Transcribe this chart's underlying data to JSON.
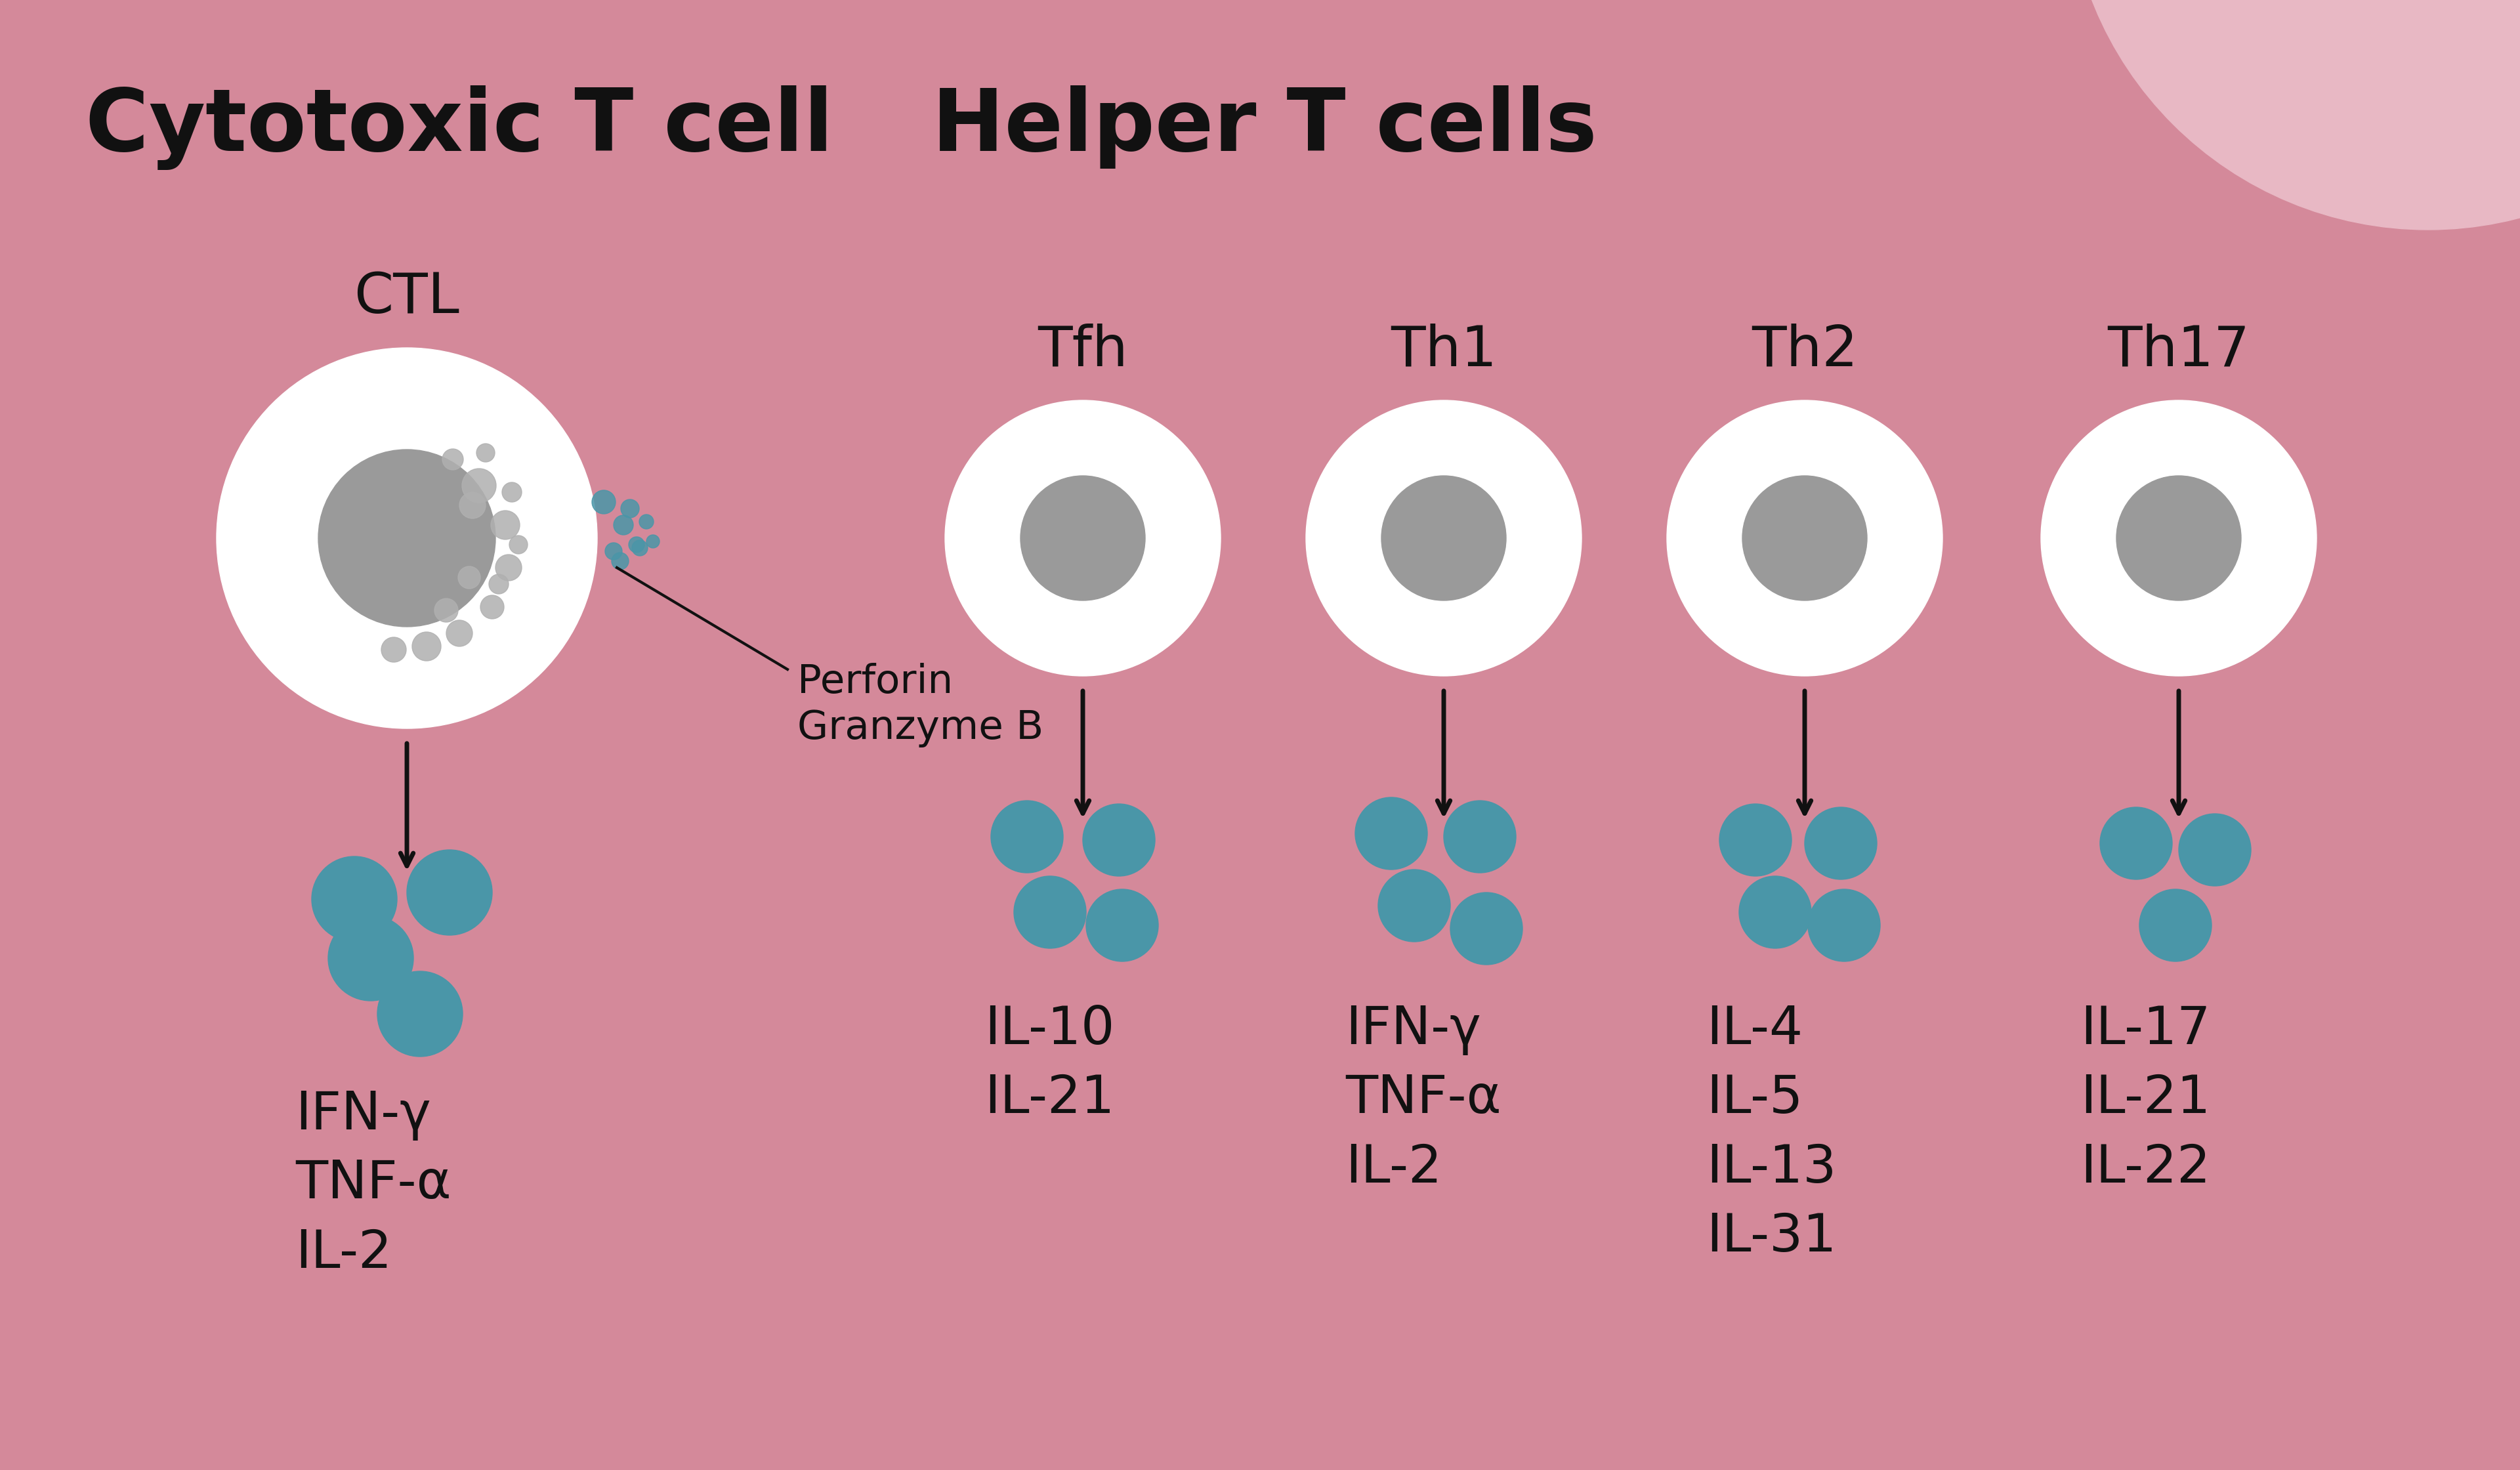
{
  "bg_color": "#d4899a",
  "bg_color_light": "#e8b8c4",
  "white_cell": "#ffffff",
  "gray_nucleus": "#9a9a9a",
  "gray_granule": "#b0b0b0",
  "teal_dots": "#4a96a8",
  "black": "#111111",
  "title_cytotoxic": "Cytotoxic T cell",
  "title_helper": "Helper T cells",
  "cell_labels": [
    "CTL",
    "Tfh",
    "Th1",
    "Th2",
    "Th17"
  ],
  "cytokines_CTL": [
    "IFN-γ",
    "TNF-α",
    "IL-2"
  ],
  "cytokines_Tfh": [
    "IL-10",
    "IL-21"
  ],
  "cytokines_Th1": [
    "IFN-γ",
    "TNF-α",
    "IL-2"
  ],
  "cytokines_Th2": [
    "IL-4",
    "IL-5",
    "IL-13",
    "IL-31"
  ],
  "cytokines_Th17": [
    "IL-17",
    "IL-21",
    "IL-22"
  ],
  "perforin_label1": "Perforin",
  "perforin_label2": "Granzyme B",
  "font_size_title": 95,
  "font_size_label": 62,
  "font_size_cytokine": 58,
  "font_size_perforin": 44
}
